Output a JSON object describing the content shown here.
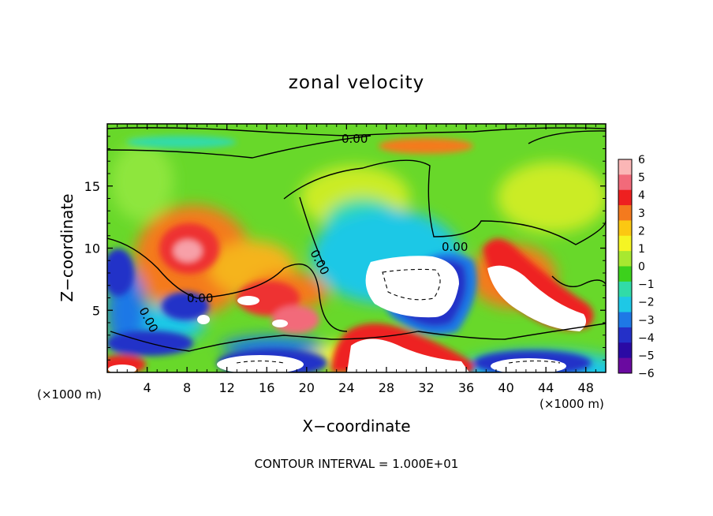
{
  "chart_data": {
    "type": "heatmap",
    "title": "zonal velocity",
    "xlabel": "X−coordinate",
    "ylabel": "Z−coordinate",
    "x_unit_left": "(×1000 m)",
    "x_unit_right": "(×1000 m)",
    "footer": "CONTOUR INTERVAL = 1.000E+01",
    "xlim": [
      0,
      50
    ],
    "ylim": [
      0,
      20
    ],
    "x_ticks": [
      4,
      8,
      12,
      16,
      20,
      24,
      28,
      32,
      36,
      40,
      44,
      48
    ],
    "x_tick_labels": [
      "4",
      "8",
      "12",
      "16",
      "20",
      "24",
      "28",
      "32",
      "36",
      "40",
      "44",
      "48"
    ],
    "y_ticks": [
      5,
      10,
      15
    ],
    "y_tick_labels": [
      "5",
      "10",
      "15"
    ],
    "contour_labels": [
      "0.00",
      "0.00",
      "0.00",
      "0.00",
      "0.00"
    ],
    "colorbar": {
      "labels": [
        "6",
        "5",
        "4",
        "3",
        "2",
        "1",
        "0",
        "−1",
        "−2",
        "−3",
        "−4",
        "−5",
        "−6"
      ],
      "colors": [
        "#fbb6b6",
        "#f26a7a",
        "#ee2020",
        "#f47a1e",
        "#fbc812",
        "#f5f523",
        "#a8e830",
        "#3cd11c",
        "#31dba8",
        "#1ec8e6",
        "#1e78e6",
        "#2430c8",
        "#2a0aa4",
        "#6a0aa0"
      ]
    }
  }
}
